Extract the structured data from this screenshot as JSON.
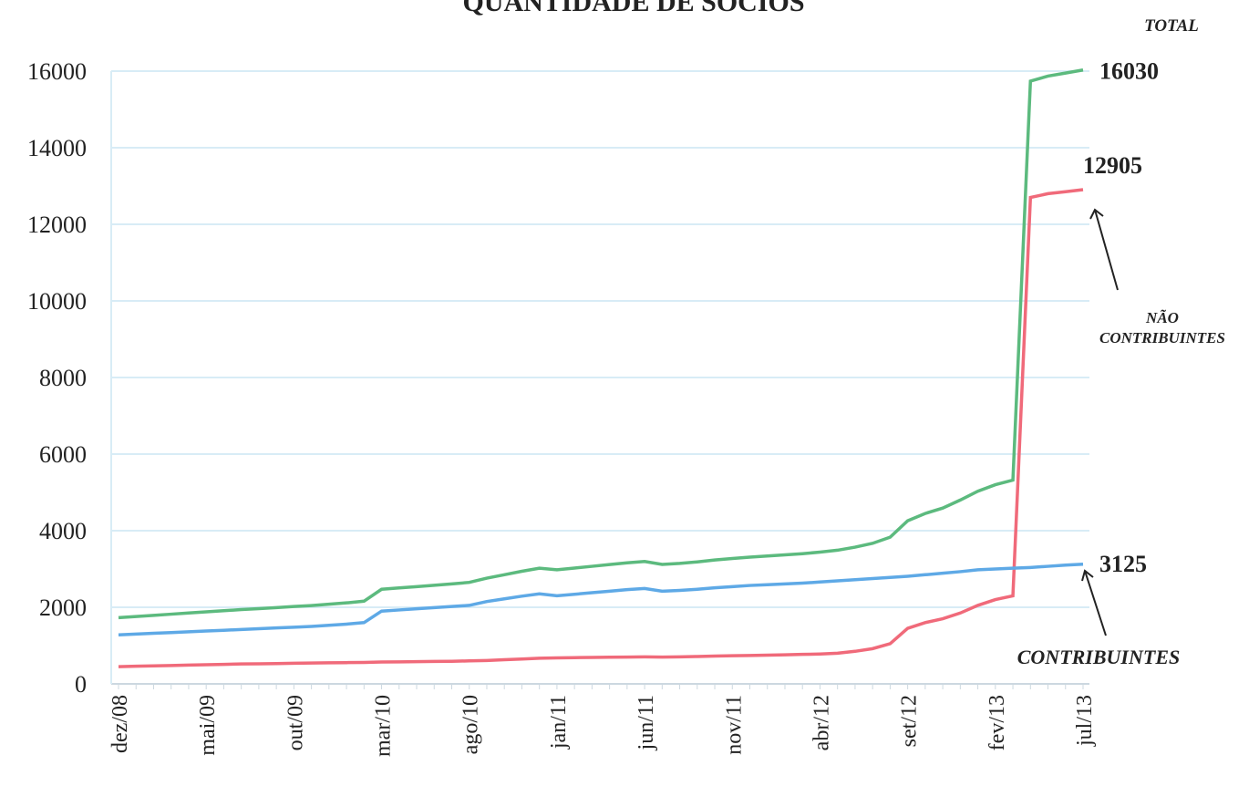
{
  "chart_data": {
    "type": "line",
    "title": "QUANTIDADE DE SÓCIOS",
    "categories": [
      "dez/08",
      null,
      null,
      null,
      null,
      "mai/09",
      null,
      null,
      null,
      null,
      "out/09",
      null,
      null,
      null,
      null,
      "mar/10",
      null,
      null,
      null,
      null,
      "ago/10",
      null,
      null,
      null,
      null,
      "jan/11",
      null,
      null,
      null,
      null,
      "jun/11",
      null,
      null,
      null,
      null,
      "nov/11",
      null,
      null,
      null,
      null,
      "abr/12",
      null,
      null,
      null,
      null,
      "set/12",
      null,
      null,
      null,
      null,
      "fev/13",
      null,
      null,
      null,
      null,
      "jul/13"
    ],
    "series": [
      {
        "name": "TOTAL",
        "color": "#5cba7e",
        "values": [
          1730,
          1760,
          1790,
          1820,
          1850,
          1880,
          1910,
          1940,
          1965,
          1990,
          2020,
          2045,
          2080,
          2115,
          2160,
          2470,
          2505,
          2540,
          2575,
          2610,
          2650,
          2760,
          2850,
          2940,
          3020,
          2980,
          3025,
          3070,
          3115,
          3160,
          3195,
          3120,
          3145,
          3185,
          3235,
          3275,
          3310,
          3340,
          3370,
          3400,
          3440,
          3490,
          3570,
          3670,
          3830,
          4260,
          4450,
          4590,
          4800,
          5030,
          5200,
          5320,
          15740,
          15870,
          15950,
          16030
        ]
      },
      {
        "name": "NÃO CONTRIBUINTES",
        "color": "#f06a7a",
        "values": [
          450,
          460,
          470,
          480,
          490,
          500,
          510,
          520,
          525,
          530,
          540,
          545,
          550,
          555,
          560,
          570,
          575,
          580,
          585,
          590,
          600,
          610,
          630,
          650,
          670,
          680,
          685,
          690,
          695,
          700,
          705,
          700,
          705,
          715,
          725,
          735,
          740,
          750,
          760,
          770,
          780,
          800,
          850,
          920,
          1050,
          1450,
          1600,
          1700,
          1850,
          2050,
          2200,
          2300,
          12700,
          12800,
          12850,
          12905
        ]
      },
      {
        "name": "CONTRIBUINTES",
        "color": "#5ea9e6",
        "values": [
          1280,
          1300,
          1320,
          1340,
          1360,
          1380,
          1400,
          1420,
          1440,
          1460,
          1480,
          1500,
          1530,
          1560,
          1600,
          1900,
          1930,
          1960,
          1990,
          2020,
          2050,
          2150,
          2220,
          2290,
          2350,
          2300,
          2340,
          2380,
          2420,
          2460,
          2490,
          2420,
          2440,
          2470,
          2510,
          2540,
          2570,
          2590,
          2610,
          2630,
          2660,
          2690,
          2720,
          2750,
          2780,
          2810,
          2850,
          2890,
          2930,
          2980,
          3000,
          3020,
          3040,
          3070,
          3100,
          3125
        ]
      }
    ],
    "ylim": [
      0,
      16000
    ],
    "yticks": [
      0,
      2000,
      4000,
      6000,
      8000,
      10000,
      12000,
      14000,
      16000
    ],
    "grid": true
  }
}
